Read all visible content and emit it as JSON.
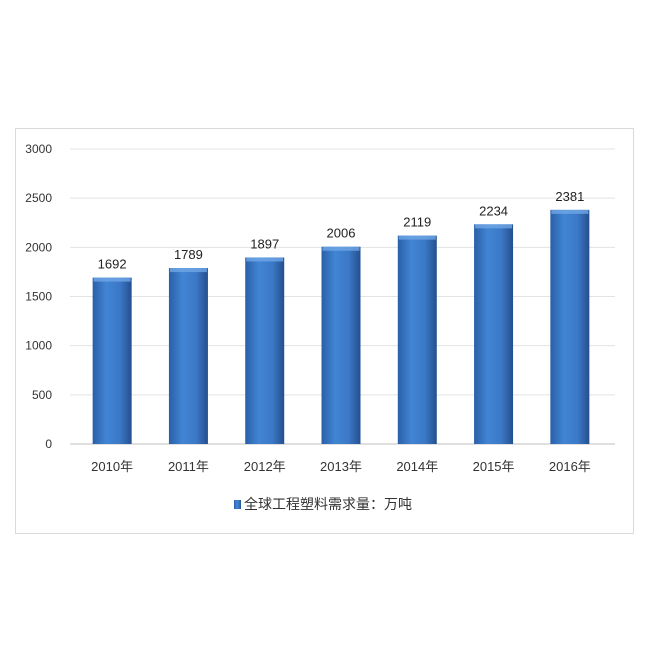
{
  "chart_data": {
    "type": "bar",
    "title": "",
    "xlabel": "",
    "ylabel": "",
    "categories": [
      "2010年",
      "2011年",
      "2012年",
      "2013年",
      "2014年",
      "2015年",
      "2016年"
    ],
    "series": [
      {
        "name": "全球工程塑料需求量：万吨",
        "values": [
          1692,
          1789,
          1897,
          2006,
          2119,
          2234,
          2381
        ],
        "color": "#3b78c6"
      }
    ],
    "ylim": [
      0,
      3000
    ],
    "yticks": [
      0,
      500,
      1000,
      1500,
      2000,
      2500,
      3000
    ],
    "grid": true,
    "data_labels": true,
    "legend": "bottom"
  }
}
